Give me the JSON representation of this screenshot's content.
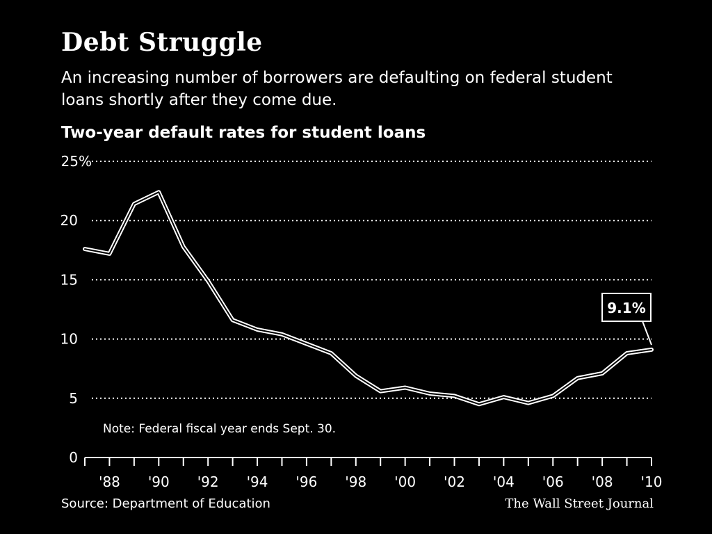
{
  "header": {
    "title": "Debt Struggle",
    "subtitle": "An increasing number of borrowers are defaulting on federal student loans shortly after they come due."
  },
  "footer": {
    "source": "Source: Department of Education",
    "credit": "The Wall Street Journal"
  },
  "chart_data": {
    "type": "line",
    "title": "Two-year default rates for student loans",
    "note": "Note: Federal fiscal year ends Sept. 30.",
    "callout": "9.1%",
    "xlabel": "",
    "ylabel": "",
    "x_ticks": [
      "'88",
      "'90",
      "'92",
      "'94",
      "'96",
      "'98",
      "'00",
      "'02",
      "'04",
      "'06",
      "'08",
      "'10"
    ],
    "x_tick_values": [
      1988,
      1990,
      1992,
      1994,
      1996,
      1998,
      2000,
      2002,
      2004,
      2006,
      2008,
      2010
    ],
    "y_ticks": [
      "25%",
      "20",
      "15",
      "10",
      "5",
      "0"
    ],
    "y_tick_values": [
      25,
      20,
      15,
      10,
      5,
      0
    ],
    "xlim": [
      1987,
      2010
    ],
    "ylim": [
      0,
      25
    ],
    "grid": "horizontal-dotted",
    "series": [
      {
        "x": [
          1987,
          1988,
          1989,
          1990,
          1991,
          1992,
          1993,
          1994,
          1995,
          1996,
          1997,
          1998,
          1999,
          2000,
          2001,
          2002,
          2003,
          2004,
          2005,
          2006,
          2007,
          2008,
          2009,
          2010
        ],
        "values": [
          17.6,
          17.2,
          21.4,
          22.4,
          17.8,
          14.9,
          11.6,
          10.8,
          10.4,
          9.6,
          8.8,
          6.9,
          5.6,
          5.9,
          5.4,
          5.2,
          4.5,
          5.1,
          4.6,
          5.2,
          6.7,
          7.1,
          8.8,
          9.1
        ]
      }
    ],
    "colors": {
      "line": "#ffffff",
      "background": "#000000"
    }
  }
}
